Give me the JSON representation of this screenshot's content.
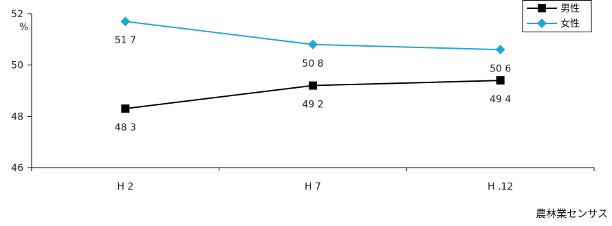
{
  "chart_data": {
    "type": "line",
    "categories": [
      "H 2",
      "H 7",
      "H .12"
    ],
    "series": [
      {
        "name": "男性",
        "values": [
          48.3,
          49.2,
          49.4
        ],
        "labels": [
          "48 3",
          "49 2",
          "49 4"
        ],
        "color": "#000000",
        "marker": "square"
      },
      {
        "name": "女性",
        "values": [
          51.7,
          50.8,
          50.6
        ],
        "labels": [
          "51 7",
          "50 8",
          "50 6"
        ],
        "color": "#1ea8e0",
        "marker": "diamond"
      }
    ],
    "ylim": [
      46,
      52
    ],
    "yticks": [
      46,
      48,
      50,
      52
    ],
    "ylabel": "%",
    "legend_position": "top-right",
    "grid": false
  },
  "source": "農林業センサス"
}
